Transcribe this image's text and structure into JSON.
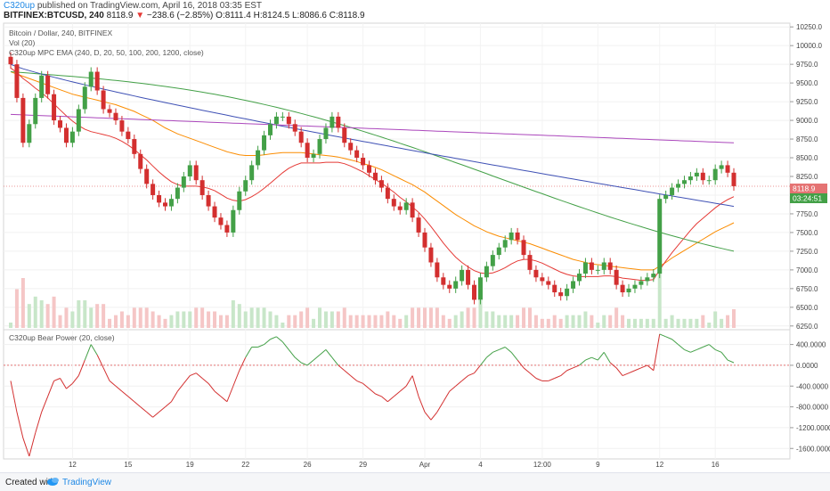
{
  "header": {
    "author": "C320up",
    "published": "published on TradingView.com, April 16, 2018 03:35 EST",
    "symbol": "BITFINEX:BTCUSD, 240",
    "last": "8118.9",
    "change_arrow": "▼",
    "change": "−238.6 (−2.85%)",
    "o_label": "O:",
    "o": "8111.4",
    "h_label": "H:",
    "h": "8124.5",
    "l_label": "L:",
    "l": "8086.6",
    "c_label": "C:",
    "c": "8118.9"
  },
  "legend": {
    "title": "Bitcoin / Dollar, 240, BITFINEX",
    "vol": "Vol (20)",
    "ema": "C320up MPC EMA (240, D, 20, 50, 100, 200, 1200, close)",
    "bear": "C320up Bear Power (20, close)"
  },
  "price_badge": "8118.9",
  "countdown_badge": "03:24:51",
  "footer": {
    "created": "Created with",
    "brand": "TradingView"
  },
  "colors": {
    "up": "#43a047",
    "down": "#d32f2f",
    "ema20": "#e53935",
    "ema50": "#fb8c00",
    "ema100": "#43a047",
    "ema200": "#3f51b5",
    "ema1200": "#ab47bc",
    "vol_up": "#c8e6c9",
    "vol_down": "#f5c6c6",
    "badge_price": "#e57373",
    "badge_timer": "#43a047"
  },
  "chart_data": [
    {
      "type": "candlestick",
      "y_ticks": [
        "10250.0",
        "10000.0",
        "9750.0",
        "9500.0",
        "9250.0",
        "9000.0",
        "8750.0",
        "8500.0",
        "8250.0",
        "8000.0",
        "7750.0",
        "7500.0",
        "7250.0",
        "7000.0",
        "6750.0",
        "6500.0",
        "6250.0"
      ],
      "ylim": [
        6200,
        10300
      ],
      "x_ticks": [
        "12",
        "15",
        "19",
        "22",
        "26",
        "29",
        "Apr",
        "4",
        "12:00",
        "9",
        "12",
        "16"
      ],
      "close": [
        9750,
        9300,
        8700,
        8950,
        9300,
        9600,
        9350,
        9000,
        8900,
        8700,
        8850,
        9150,
        9450,
        9650,
        9400,
        9150,
        9100,
        9000,
        8850,
        8750,
        8550,
        8350,
        8150,
        8000,
        7900,
        7850,
        7950,
        8100,
        8250,
        8400,
        8200,
        8000,
        7850,
        7700,
        7600,
        7500,
        7800,
        8050,
        8200,
        8400,
        8600,
        8800,
        8950,
        9050,
        9050,
        8950,
        8850,
        8700,
        8500,
        8550,
        8750,
        8900,
        9050,
        8900,
        8700,
        8600,
        8500,
        8400,
        8300,
        8200,
        8100,
        7950,
        7850,
        7800,
        7900,
        7700,
        7500,
        7300,
        7100,
        6900,
        6800,
        6750,
        6850,
        7000,
        6800,
        6600,
        6900,
        7050,
        7200,
        7300,
        7400,
        7500,
        7400,
        7200,
        7000,
        6900,
        6850,
        6800,
        6700,
        6650,
        6750,
        6850,
        6950,
        7100,
        7000,
        7000,
        7100,
        7000,
        6800,
        6700,
        6750,
        6800,
        6850,
        6900,
        6950,
        7950,
        8000,
        8100,
        8150,
        8200,
        8250,
        8300,
        8200,
        8200,
        8350,
        8400,
        8300,
        8120
      ],
      "ema20": [
        9700,
        9640,
        9560,
        9500,
        9430,
        9370,
        9300,
        9220,
        9140,
        9060,
        8990,
        8930,
        8880,
        8850,
        8830,
        8810,
        8790,
        8760,
        8720,
        8670,
        8610,
        8540,
        8470,
        8390,
        8310,
        8240,
        8180,
        8140,
        8120,
        8120,
        8120,
        8110,
        8090,
        8060,
        8010,
        7960,
        7930,
        7920,
        7940,
        7980,
        8030,
        8090,
        8160,
        8230,
        8300,
        8360,
        8400,
        8430,
        8430,
        8430,
        8430,
        8440,
        8440,
        8440,
        8420,
        8390,
        8350,
        8310,
        8260,
        8210,
        8160,
        8100,
        8040,
        7970,
        7910,
        7840,
        7770,
        7680,
        7580,
        7470,
        7360,
        7260,
        7170,
        7100,
        7040,
        6990,
        6960,
        6950,
        6960,
        6990,
        7030,
        7080,
        7120,
        7140,
        7140,
        7120,
        7090,
        7050,
        7010,
        6970,
        6940,
        6920,
        6910,
        6910,
        6910,
        6910,
        6920,
        6920,
        6910,
        6890,
        6880,
        6870,
        6860,
        6860,
        6870,
        7000,
        7120,
        7230,
        7330,
        7430,
        7530,
        7620,
        7690,
        7760,
        7830,
        7890,
        7940,
        7980
      ],
      "ema50": [
        9650,
        9620,
        9590,
        9560,
        9530,
        9500,
        9470,
        9440,
        9410,
        9380,
        9350,
        9330,
        9310,
        9290,
        9270,
        9250,
        9230,
        9210,
        9180,
        9150,
        9120,
        9080,
        9040,
        9000,
        8950,
        8900,
        8860,
        8820,
        8790,
        8760,
        8730,
        8700,
        8670,
        8640,
        8610,
        8580,
        8560,
        8540,
        8530,
        8530,
        8530,
        8540,
        8550,
        8560,
        8570,
        8570,
        8570,
        8570,
        8560,
        8550,
        8540,
        8530,
        8520,
        8510,
        8490,
        8470,
        8450,
        8420,
        8400,
        8370,
        8340,
        8300,
        8260,
        8220,
        8180,
        8140,
        8090,
        8040,
        7980,
        7920,
        7860,
        7800,
        7740,
        7690,
        7640,
        7590,
        7550,
        7510,
        7480,
        7450,
        7430,
        7410,
        7390,
        7370,
        7350,
        7320,
        7290,
        7260,
        7230,
        7200,
        7170,
        7140,
        7120,
        7100,
        7080,
        7070,
        7060,
        7050,
        7040,
        7030,
        7020,
        7010,
        7000,
        7000,
        7000,
        7050,
        7100,
        7160,
        7210,
        7260,
        7310,
        7360,
        7410,
        7460,
        7510,
        7550,
        7590,
        7630
      ]
    },
    {
      "type": "line",
      "title": "C320up Bear Power (20, close)",
      "y_ticks": [
        "400.0000",
        "0.0000",
        "-400.0000",
        "-800.0000",
        "-1200.0000",
        "-1600.0000"
      ],
      "ylim": [
        -1750,
        650
      ],
      "values": [
        -300,
        -900,
        -1400,
        -1750,
        -1300,
        -900,
        -600,
        -300,
        -250,
        -450,
        -350,
        -200,
        100,
        400,
        200,
        -50,
        -300,
        -400,
        -500,
        -600,
        -700,
        -800,
        -900,
        -1000,
        -900,
        -800,
        -700,
        -500,
        -350,
        -200,
        -150,
        -250,
        -350,
        -500,
        -600,
        -700,
        -400,
        -100,
        150,
        350,
        350,
        400,
        500,
        550,
        450,
        300,
        150,
        50,
        0,
        100,
        200,
        300,
        150,
        0,
        -100,
        -200,
        -300,
        -350,
        -450,
        -550,
        -600,
        -700,
        -600,
        -500,
        -400,
        -200,
        -600,
        -900,
        -1050,
        -900,
        -700,
        -500,
        -400,
        -300,
        -200,
        -150,
        0,
        150,
        250,
        300,
        350,
        250,
        100,
        -50,
        -150,
        -250,
        -300,
        -300,
        -250,
        -200,
        -100,
        -50,
        0,
        100,
        150,
        100,
        250,
        50,
        -50,
        -200,
        -150,
        -100,
        -50,
        0,
        -100,
        600,
        550,
        500,
        400,
        300,
        250,
        300,
        350,
        400,
        300,
        250,
        100,
        50
      ]
    }
  ]
}
